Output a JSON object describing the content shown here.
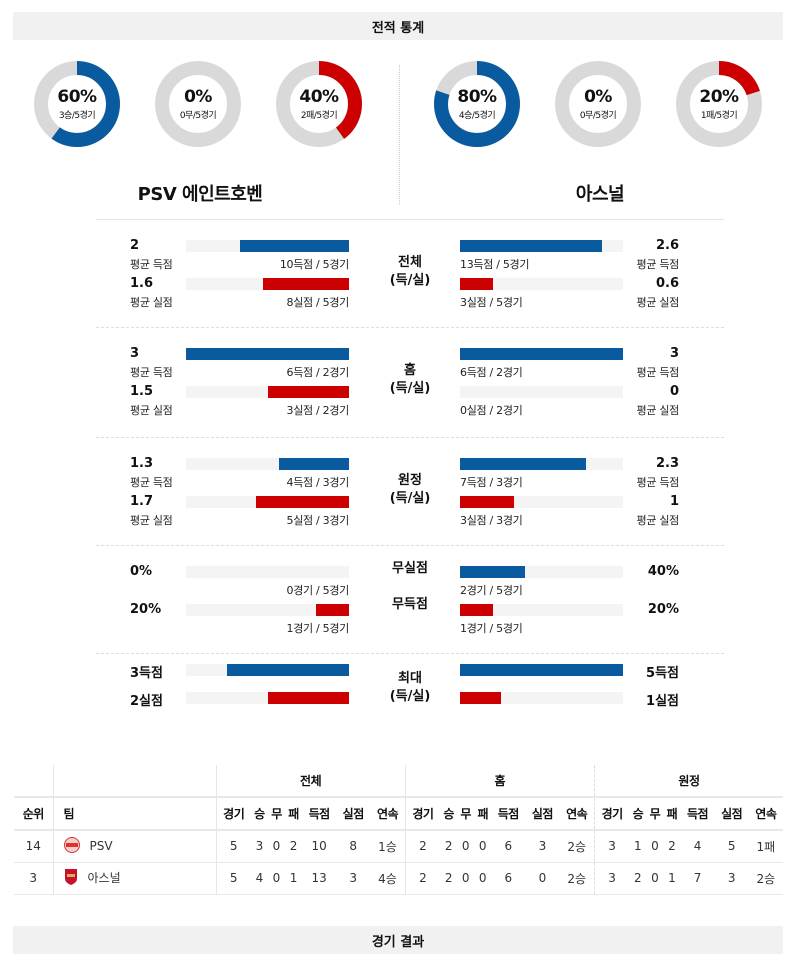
{
  "header": {
    "title": "전적 통계"
  },
  "footer": {
    "title": "경기 결과"
  },
  "colors": {
    "blue": "#0a5aa0",
    "red": "#cc0000",
    "track": "#d9d9d9"
  },
  "teams": {
    "home": {
      "name": "PSV 에인트호벤",
      "donuts": [
        {
          "pct": "60%",
          "sub": "3승/5경기",
          "value": 0.6,
          "color": "#0a5aa0"
        },
        {
          "pct": "0%",
          "sub": "0무/5경기",
          "value": 0,
          "color": "#0a5aa0"
        },
        {
          "pct": "40%",
          "sub": "2패/5경기",
          "value": 0.4,
          "color": "#cc0000"
        }
      ]
    },
    "away": {
      "name": "아스널",
      "donuts": [
        {
          "pct": "80%",
          "sub": "4승/5경기",
          "value": 0.8,
          "color": "#0a5aa0"
        },
        {
          "pct": "0%",
          "sub": "0무/5경기",
          "value": 0,
          "color": "#0a5aa0"
        },
        {
          "pct": "20%",
          "sub": "1패/5경기",
          "value": 0.2,
          "color": "#cc0000"
        }
      ]
    }
  },
  "sections": [
    {
      "center": [
        "전체",
        "(득/실)"
      ],
      "rows": [
        {
          "lv": "2",
          "lcap": "평균 득점",
          "lmid": "10득점 / 5경기",
          "lfill": 0.67,
          "rv": "2.6",
          "rcap": "평균 득점",
          "rmid": "13득점 / 5경기",
          "rfill": 0.87,
          "color": "#0a5aa0"
        },
        {
          "lv": "1.6",
          "lcap": "평균 실점",
          "lmid": "8실점 / 5경기",
          "lfill": 0.53,
          "rv": "0.6",
          "rcap": "평균 실점",
          "rmid": "3실점 / 5경기",
          "rfill": 0.2,
          "color": "#cc0000"
        }
      ]
    },
    {
      "center": [
        "홈",
        "(득/실)"
      ],
      "rows": [
        {
          "lv": "3",
          "lcap": "평균 득점",
          "lmid": "6득점 / 2경기",
          "lfill": 1.0,
          "rv": "3",
          "rcap": "평균 득점",
          "rmid": "6득점 / 2경기",
          "rfill": 1.0,
          "color": "#0a5aa0"
        },
        {
          "lv": "1.5",
          "lcap": "평균 실점",
          "lmid": "3실점 / 2경기",
          "lfill": 0.5,
          "rv": "0",
          "rcap": "평균 실점",
          "rmid": "0실점 / 2경기",
          "rfill": 0,
          "color": "#cc0000"
        }
      ]
    },
    {
      "center": [
        "원정",
        "(득/실)"
      ],
      "rows": [
        {
          "lv": "1.3",
          "lcap": "평균 득점",
          "lmid": "4득점 / 3경기",
          "lfill": 0.43,
          "rv": "2.3",
          "rcap": "평균 득점",
          "rmid": "7득점 / 3경기",
          "rfill": 0.77,
          "color": "#0a5aa0"
        },
        {
          "lv": "1.7",
          "lcap": "평균 실점",
          "lmid": "5실점 / 3경기",
          "lfill": 0.57,
          "rv": "1",
          "rcap": "평균 실점",
          "rmid": "3실점 / 3경기",
          "rfill": 0.33,
          "color": "#cc0000"
        }
      ]
    },
    {
      "center2": [
        "무실점",
        "무득점"
      ],
      "rows": [
        {
          "lv": "0%",
          "lmid": "0경기 / 5경기",
          "lfill": 0,
          "rv": "40%",
          "rmid": "2경기 / 5경기",
          "rfill": 0.4,
          "color": "#0a5aa0"
        },
        {
          "lv": "20%",
          "lmid": "1경기 / 5경기",
          "lfill": 0.2,
          "rv": "20%",
          "rmid": "1경기 / 5경기",
          "rfill": 0.2,
          "color": "#cc0000"
        }
      ]
    },
    {
      "center": [
        "최대",
        "(득/실)"
      ],
      "compact": true,
      "rows": [
        {
          "lv": "3득점",
          "lfill": 0.75,
          "rv": "5득점",
          "rfill": 1.0,
          "color": "#0a5aa0"
        },
        {
          "lv": "2실점",
          "lfill": 0.5,
          "rv": "1실점",
          "rfill": 0.25,
          "color": "#cc0000"
        }
      ]
    }
  ],
  "standings": {
    "groups": [
      "전체",
      "홈",
      "원정"
    ],
    "headers": [
      "순위",
      "팀",
      "경기",
      "승",
      "무",
      "패",
      "득점",
      "실점",
      "연속",
      "경기",
      "승",
      "무",
      "패",
      "득점",
      "실점",
      "연속",
      "경기",
      "승",
      "무",
      "패",
      "득점",
      "실점",
      "연속"
    ],
    "rows": [
      {
        "rank": "14",
        "team": "PSV",
        "logo": "psv-logo",
        "cells": [
          "5",
          "3",
          "0",
          "2",
          "10",
          "8",
          "1승",
          "2",
          "2",
          "0",
          "0",
          "6",
          "3",
          "2승",
          "3",
          "1",
          "0",
          "2",
          "4",
          "5",
          "1패"
        ]
      },
      {
        "rank": "3",
        "team": "아스널",
        "logo": "arsenal-logo",
        "cells": [
          "5",
          "4",
          "0",
          "1",
          "13",
          "3",
          "4승",
          "2",
          "2",
          "0",
          "0",
          "6",
          "0",
          "2승",
          "3",
          "2",
          "0",
          "1",
          "7",
          "3",
          "2승"
        ]
      }
    ]
  }
}
